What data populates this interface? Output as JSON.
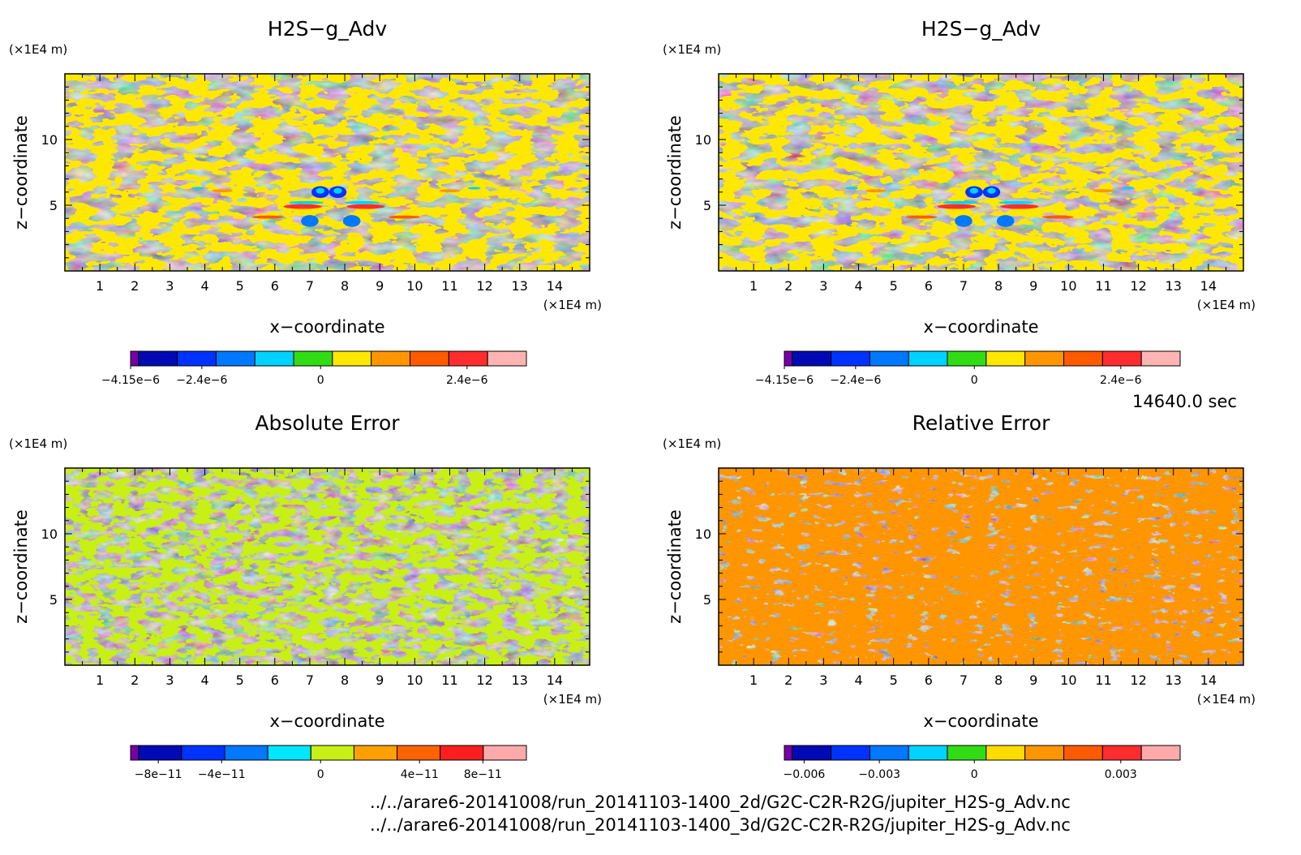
{
  "timestamp": "14640.0 sec",
  "files": [
    "../../arare6-20141008/run_20141103-1400_2d/G2C-C2R-R2G/jupiter_H2S-g_Adv.nc",
    "../../arare6-20141008/run_20141103-1400_3d/G2C-C2R-R2G/jupiter_H2S-g_Adv.nc"
  ],
  "chart_data": [
    {
      "type": "heatmap",
      "title": "H2S−g_Adv",
      "xlabel": "x−coordinate",
      "ylabel": "z−coordinate",
      "x_unit": "(×1E4 m)",
      "y_unit": "(×1E4 m)",
      "xlim": [
        0,
        15
      ],
      "ylim": [
        0,
        15
      ],
      "x_ticks": [
        1,
        2,
        3,
        4,
        5,
        6,
        7,
        8,
        9,
        10,
        11,
        12,
        13,
        14
      ],
      "y_ticks": [
        5,
        10
      ],
      "dominant_colors": [
        "#ffe800",
        "#32dc14"
      ],
      "colorbar": {
        "colors": [
          "#7700a8",
          "#000ab4",
          "#0032ff",
          "#0078ff",
          "#00d2ff",
          "#32dc14",
          "#ffe800",
          "#ff9600",
          "#ff5a00",
          "#ff2d2d",
          "#ffb4b4"
        ],
        "tick_labels": [
          "−4.15e−6",
          "−2.4e−6",
          "0",
          "2.4e−6"
        ]
      }
    },
    {
      "type": "heatmap",
      "title": "H2S−g_Adv",
      "xlabel": "x−coordinate",
      "ylabel": "z−coordinate",
      "x_unit": "(×1E4 m)",
      "y_unit": "(×1E4 m)",
      "xlim": [
        0,
        15
      ],
      "ylim": [
        0,
        15
      ],
      "x_ticks": [
        1,
        2,
        3,
        4,
        5,
        6,
        7,
        8,
        9,
        10,
        11,
        12,
        13,
        14
      ],
      "y_ticks": [
        5,
        10
      ],
      "dominant_colors": [
        "#ffe800",
        "#32dc14"
      ],
      "colorbar": {
        "colors": [
          "#7700a8",
          "#000ab4",
          "#0032ff",
          "#0078ff",
          "#00d2ff",
          "#32dc14",
          "#ffe800",
          "#ff9600",
          "#ff5a00",
          "#ff2d2d",
          "#ffb4b4"
        ],
        "tick_labels": [
          "−4.15e−6",
          "−2.4e−6",
          "0",
          "2.4e−6"
        ]
      }
    },
    {
      "type": "heatmap",
      "title": "Absolute Error",
      "xlabel": "x−coordinate",
      "ylabel": "z−coordinate",
      "x_unit": "(×1E4 m)",
      "y_unit": "(×1E4 m)",
      "xlim": [
        0,
        15
      ],
      "ylim": [
        0,
        15
      ],
      "x_ticks": [
        1,
        2,
        3,
        4,
        5,
        6,
        7,
        8,
        9,
        10,
        11,
        12,
        13,
        14
      ],
      "y_ticks": [
        5,
        10
      ],
      "dominant_colors": [
        "#c8f014",
        "#00e6ff"
      ],
      "colorbar": {
        "colors": [
          "#7700a8",
          "#000ab4",
          "#0032ff",
          "#0078ff",
          "#00e6ff",
          "#c8f014",
          "#ffa000",
          "#ff6400",
          "#ff1e1e",
          "#ffaaaa"
        ],
        "tick_labels": [
          "−8e−11",
          "−4e−11",
          "0",
          "4e−11",
          "8e−11"
        ]
      }
    },
    {
      "type": "heatmap",
      "title": "Relative Error",
      "xlabel": "x−coordinate",
      "ylabel": "z−coordinate",
      "x_unit": "(×1E4 m)",
      "y_unit": "(×1E4 m)",
      "xlim": [
        0,
        15
      ],
      "ylim": [
        0,
        15
      ],
      "x_ticks": [
        1,
        2,
        3,
        4,
        5,
        6,
        7,
        8,
        9,
        10,
        11,
        12,
        13,
        14
      ],
      "y_ticks": [
        5,
        10
      ],
      "dominant_colors": [
        "#ff9600",
        "#ffdc00"
      ],
      "colorbar": {
        "colors": [
          "#7700a8",
          "#000ab4",
          "#0032ff",
          "#0078ff",
          "#00d2ff",
          "#32dc14",
          "#ffdc00",
          "#ff9600",
          "#ff5a00",
          "#ff2d2d",
          "#ffaaaa"
        ],
        "tick_labels": [
          "−0.006",
          "−0.003",
          "0",
          "0.003"
        ]
      }
    }
  ]
}
